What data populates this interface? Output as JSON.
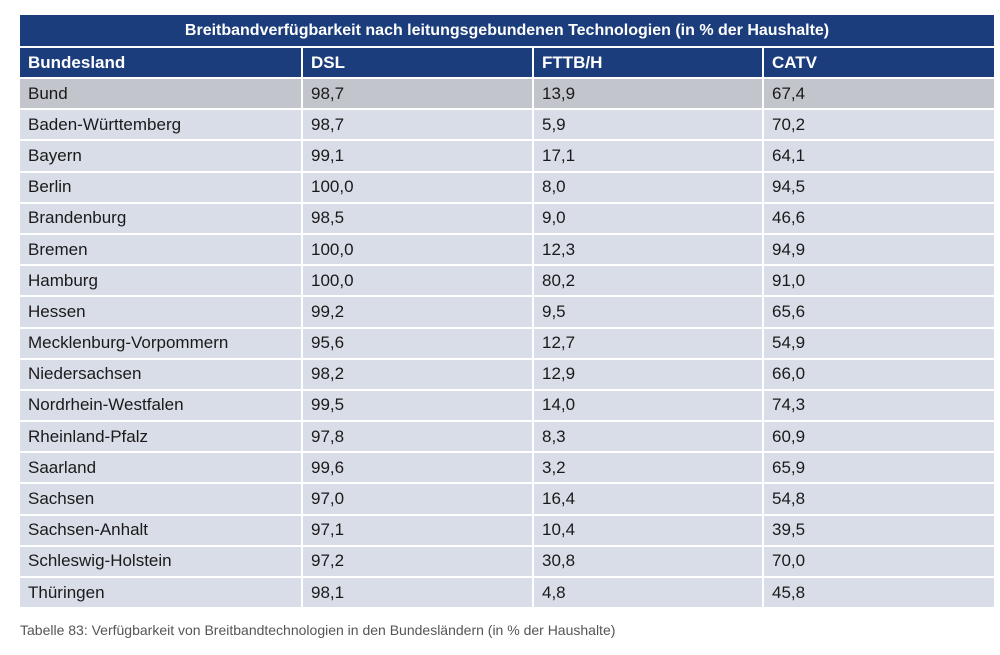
{
  "table": {
    "title": "Breitbandverfügbarkeit nach leitungsgebundenen Technologien (in % der Haushalte)",
    "headers": [
      "Bundesland",
      "DSL",
      "FTTB/H",
      "CATV"
    ],
    "rows": [
      [
        "Bund",
        "98,7",
        "13,9",
        "67,4"
      ],
      [
        "Baden-Württemberg",
        "98,7",
        "5,9",
        "70,2"
      ],
      [
        "Bayern",
        "99,1",
        "17,1",
        "64,1"
      ],
      [
        "Berlin",
        "100,0",
        "8,0",
        "94,5"
      ],
      [
        "Brandenburg",
        "98,5",
        "9,0",
        "46,6"
      ],
      [
        "Bremen",
        "100,0",
        "12,3",
        "94,9"
      ],
      [
        "Hamburg",
        "100,0",
        "80,2",
        "91,0"
      ],
      [
        "Hessen",
        "99,2",
        "9,5",
        "65,6"
      ],
      [
        "Mecklenburg-Vorpommern",
        "95,6",
        "12,7",
        "54,9"
      ],
      [
        "Niedersachsen",
        "98,2",
        "12,9",
        "66,0"
      ],
      [
        "Nordrhein-Westfalen",
        "99,5",
        "14,0",
        "74,3"
      ],
      [
        "Rheinland-Pfalz",
        "97,8",
        "8,3",
        "60,9"
      ],
      [
        "Saarland",
        "99,6",
        "3,2",
        "65,9"
      ],
      [
        "Sachsen",
        "97,0",
        "16,4",
        "54,8"
      ],
      [
        "Sachsen-Anhalt",
        "97,1",
        "10,4",
        "39,5"
      ],
      [
        "Schleswig-Holstein",
        "97,2",
        "30,8",
        "70,0"
      ],
      [
        "Thüringen",
        "98,1",
        "4,8",
        "45,8"
      ]
    ]
  },
  "caption": "Tabelle 83: Verfügbarkeit von Breitbandtechnologien in den Bundesländern (in % der Haushalte)",
  "colors": {
    "header_bg": "#1b3d7b",
    "row_bg": "#d9dde7",
    "highlight_row_bg": "#c2c5cc"
  }
}
